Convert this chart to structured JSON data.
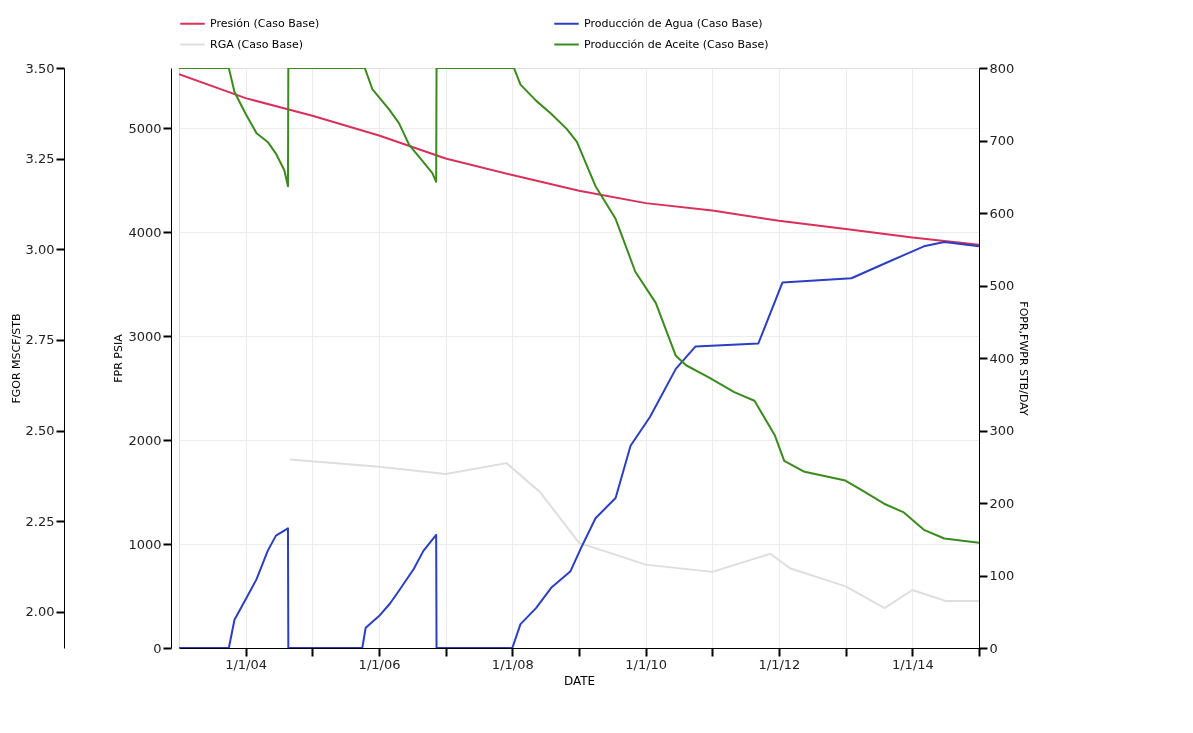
{
  "chart_data": {
    "type": "line",
    "xlabel": "DATE",
    "ylabel": "FGOR   MSCF/STB",
    "y3label": "FPR   PSIA",
    "y2label": "FOPR,FWPR   STB/DAY",
    "xlim": [
      "2003-01-01",
      "2015-01-01"
    ],
    "xticks": [
      {
        "value": "2004-01-01",
        "label": "1/1/04"
      },
      {
        "value": "2005-01-01",
        "label": null
      },
      {
        "value": "2006-01-01",
        "label": "1/1/06"
      },
      {
        "value": "2007-01-01",
        "label": null
      },
      {
        "value": "2008-01-01",
        "label": "1/1/08"
      },
      {
        "value": "2009-01-01",
        "label": null
      },
      {
        "value": "2010-01-01",
        "label": "1/1/10"
      },
      {
        "value": "2011-01-01",
        "label": null
      },
      {
        "value": "2012-01-01",
        "label": "1/1/12"
      },
      {
        "value": "2013-01-01",
        "label": null
      },
      {
        "value": "2014-01-01",
        "label": "1/1/14"
      },
      {
        "value": "2015-01-01",
        "label": null
      }
    ],
    "ylim": [
      1.9,
      3.5
    ],
    "yticks": [
      {
        "value": 2.0,
        "label": "2.00"
      },
      {
        "value": 2.25,
        "label": "2.25"
      },
      {
        "value": 2.5,
        "label": "2.50"
      },
      {
        "value": 2.75,
        "label": "2.75"
      },
      {
        "value": 3.0,
        "label": "3.00"
      },
      {
        "value": 3.25,
        "label": "3.25"
      },
      {
        "value": 3.5,
        "label": "3.50"
      }
    ],
    "y3lim": [
      0,
      5580
    ],
    "y3ticks": [
      0,
      1000,
      2000,
      3000,
      4000,
      5000
    ],
    "y2lim": [
      0,
      800
    ],
    "y2ticks": [
      0,
      100,
      200,
      300,
      400,
      500,
      600,
      700,
      800
    ],
    "grid": true,
    "legend": "top",
    "series": [
      {
        "name": "Presión (Caso Base)",
        "color": "#d9305a",
        "axis": "y3",
        "x": [
          "2003-01-01",
          "2004-01-01",
          "2005-01-01",
          "2006-01-01",
          "2007-01-01",
          "2008-01-01",
          "2009-01-01",
          "2010-01-01",
          "2011-01-01",
          "2012-01-01",
          "2013-01-01",
          "2014-01-01",
          "2015-01-01"
        ],
        "values": [
          5520,
          5290,
          5120,
          4930,
          4710,
          4550,
          4400,
          4280,
          4210,
          4110,
          4030,
          3950,
          3880
        ]
      },
      {
        "name": "Producción de Agua (Caso Base)",
        "color": "#2b3fc0",
        "axis": "y2",
        "x": [
          "2003-01-01",
          "2003-10-01",
          "2003-11-01",
          "2004-01-01",
          "2004-03-01",
          "2004-05-01",
          "2004-06-15",
          "2004-08-20",
          "2004-08-22",
          "2005-10-01",
          "2005-10-20",
          "2006-01-01",
          "2006-03-01",
          "2006-04-20",
          "2006-07-10",
          "2006-09-01",
          "2006-11-10",
          "2006-11-12",
          "2008-01-01",
          "2008-02-15",
          "2008-05-10",
          "2008-08-01",
          "2008-11-15",
          "2009-01-10",
          "2009-04-01",
          "2009-07-20",
          "2009-10-10",
          "2010-01-25",
          "2010-06-15",
          "2010-10-01",
          "2011-09-10",
          "2012-01-20",
          "2013-02-01",
          "2013-07-30",
          "2013-11-15",
          "2014-03-05",
          "2014-06-25",
          "2015-01-01"
        ],
        "values": [
          0,
          0,
          39,
          67,
          95,
          134,
          155,
          165,
          0,
          0,
          28,
          44,
          61,
          79,
          109,
          134,
          156,
          0,
          0,
          33,
          55,
          83,
          106,
          137,
          179,
          207,
          279,
          319,
          385,
          416,
          420,
          504,
          510,
          530,
          542,
          554,
          560,
          554
        ]
      },
      {
        "name": "RGA (Caso Base)",
        "color": "#dedede",
        "axis": "y",
        "x": [
          "2004-09-01",
          "2006-01-01",
          "2007-01-01",
          "2007-12-01",
          "2008-06-01",
          "2009-01-01",
          "2010-01-01",
          "2011-01-01",
          "2011-11-15",
          "2012-03-01",
          "2013-01-01",
          "2013-08-01",
          "2014-01-01",
          "2014-07-01",
          "2015-01-01"
        ],
        "values": [
          2.42,
          2.4,
          2.38,
          2.41,
          2.33,
          2.19,
          2.13,
          2.11,
          2.16,
          2.12,
          2.07,
          2.01,
          2.06,
          2.03,
          2.03
        ]
      },
      {
        "name": "Producción de Aceite (Caso Base)",
        "color": "#3a8a1e",
        "axis": "y2",
        "x": [
          "2003-01-01",
          "2003-10-01",
          "2003-11-01",
          "2004-01-01",
          "2004-03-01",
          "2004-05-01",
          "2004-06-15",
          "2004-07-31",
          "2004-08-20",
          "2004-08-22",
          "2005-10-15",
          "2005-11-25",
          "2006-02-25",
          "2006-04-20",
          "2006-06-15",
          "2006-08-30",
          "2006-10-20",
          "2006-11-10",
          "2006-11-12",
          "2008-01-10",
          "2008-02-15",
          "2008-05-10",
          "2008-08-01",
          "2008-10-25",
          "2008-12-20",
          "2009-04-01",
          "2009-07-20",
          "2009-11-05",
          "2010-02-25",
          "2010-06-15",
          "2010-08-10",
          "2010-12-15",
          "2011-05-01",
          "2011-08-20",
          "2011-12-10",
          "2012-01-30",
          "2012-05-20",
          "2012-12-30",
          "2013-04-10",
          "2013-07-30",
          "2013-11-15",
          "2014-03-05",
          "2014-06-25",
          "2015-01-01"
        ],
        "values": [
          800,
          800,
          767,
          737,
          710,
          698,
          682,
          659,
          637,
          800,
          800,
          771,
          743,
          724,
          694,
          671,
          655,
          643,
          800,
          800,
          777,
          755,
          737,
          716,
          698,
          637,
          592,
          519,
          476,
          403,
          390,
          373,
          353,
          341,
          293,
          258,
          243,
          231,
          216,
          199,
          187,
          163,
          151,
          145
        ]
      }
    ]
  }
}
